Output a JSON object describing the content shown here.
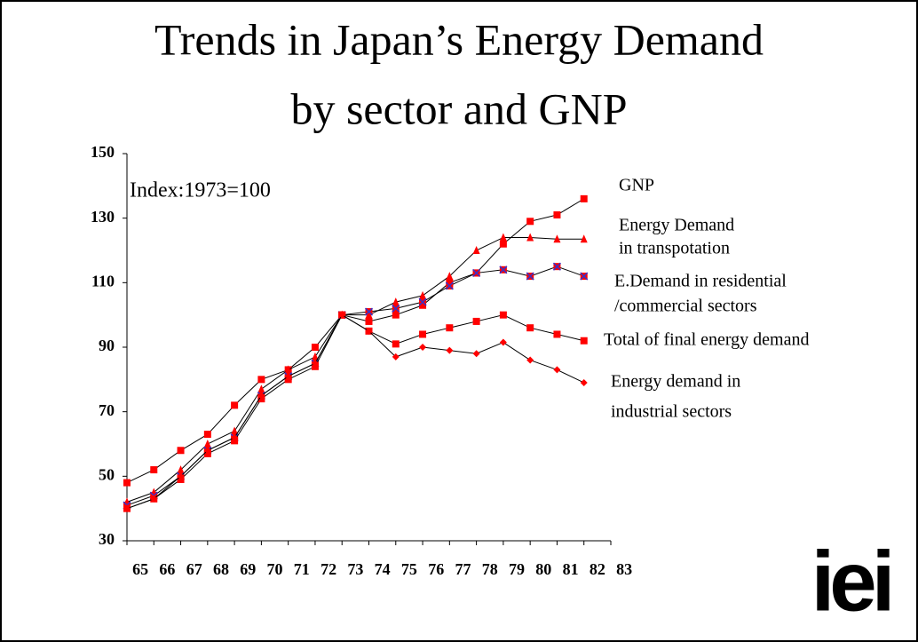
{
  "chart_data": {
    "type": "line",
    "title": [
      "Trends in Japan’s Energy Demand",
      "by sector and GNP"
    ],
    "annotation": "Index:1973=100",
    "logo": "iei",
    "x": [
      65,
      66,
      67,
      68,
      69,
      70,
      71,
      72,
      73,
      74,
      75,
      76,
      77,
      78,
      79,
      80,
      81,
      82
    ],
    "xlim": [
      65,
      83
    ],
    "xticks": [
      65,
      66,
      67,
      68,
      69,
      70,
      71,
      72,
      73,
      74,
      75,
      76,
      77,
      78,
      79,
      80,
      81,
      82,
      83
    ],
    "ylim": [
      30,
      150
    ],
    "yticks": [
      30,
      50,
      70,
      90,
      110,
      130,
      150
    ],
    "line_color": "#000000",
    "series": [
      {
        "name": [
          "GNP"
        ],
        "marker": "square",
        "color": "#ff0000",
        "values": [
          48,
          52,
          58,
          63,
          72,
          80,
          83,
          90,
          100,
          98,
          100,
          103,
          110,
          113,
          122,
          129,
          131,
          136
        ]
      },
      {
        "name": [
          "Energy Demand",
          "in transpotation"
        ],
        "marker": "triangle",
        "color": "#ff0000",
        "values": [
          42,
          45,
          52,
          60,
          64,
          77,
          83,
          87,
          100,
          100,
          104,
          106,
          112,
          120,
          124,
          124,
          123.5,
          123.5
        ]
      },
      {
        "name": [
          "E.Demand in residential",
          "/commercial sectors"
        ],
        "marker": "square-x",
        "color": "#ff0000",
        "color2": "#3333cc",
        "values": [
          41,
          44,
          50,
          58,
          62,
          75,
          81,
          85,
          100,
          101,
          102,
          104,
          109,
          113,
          114,
          112,
          115,
          112
        ]
      },
      {
        "name": [
          "Total of final energy demand"
        ],
        "marker": "square",
        "color": "#ff0000",
        "values": [
          40,
          43,
          49,
          57,
          61,
          74,
          80,
          84,
          100,
          95,
          91,
          94,
          96,
          98,
          100,
          96,
          94,
          92
        ]
      },
      {
        "name": [
          "Energy demand in",
          "industrial sectors"
        ],
        "marker": "diamond",
        "color": "#ff0000",
        "values": [
          40,
          43,
          50,
          58,
          62,
          75,
          81,
          85,
          100,
          95,
          87,
          90,
          89,
          88,
          91.5,
          86,
          83,
          79
        ]
      }
    ]
  }
}
